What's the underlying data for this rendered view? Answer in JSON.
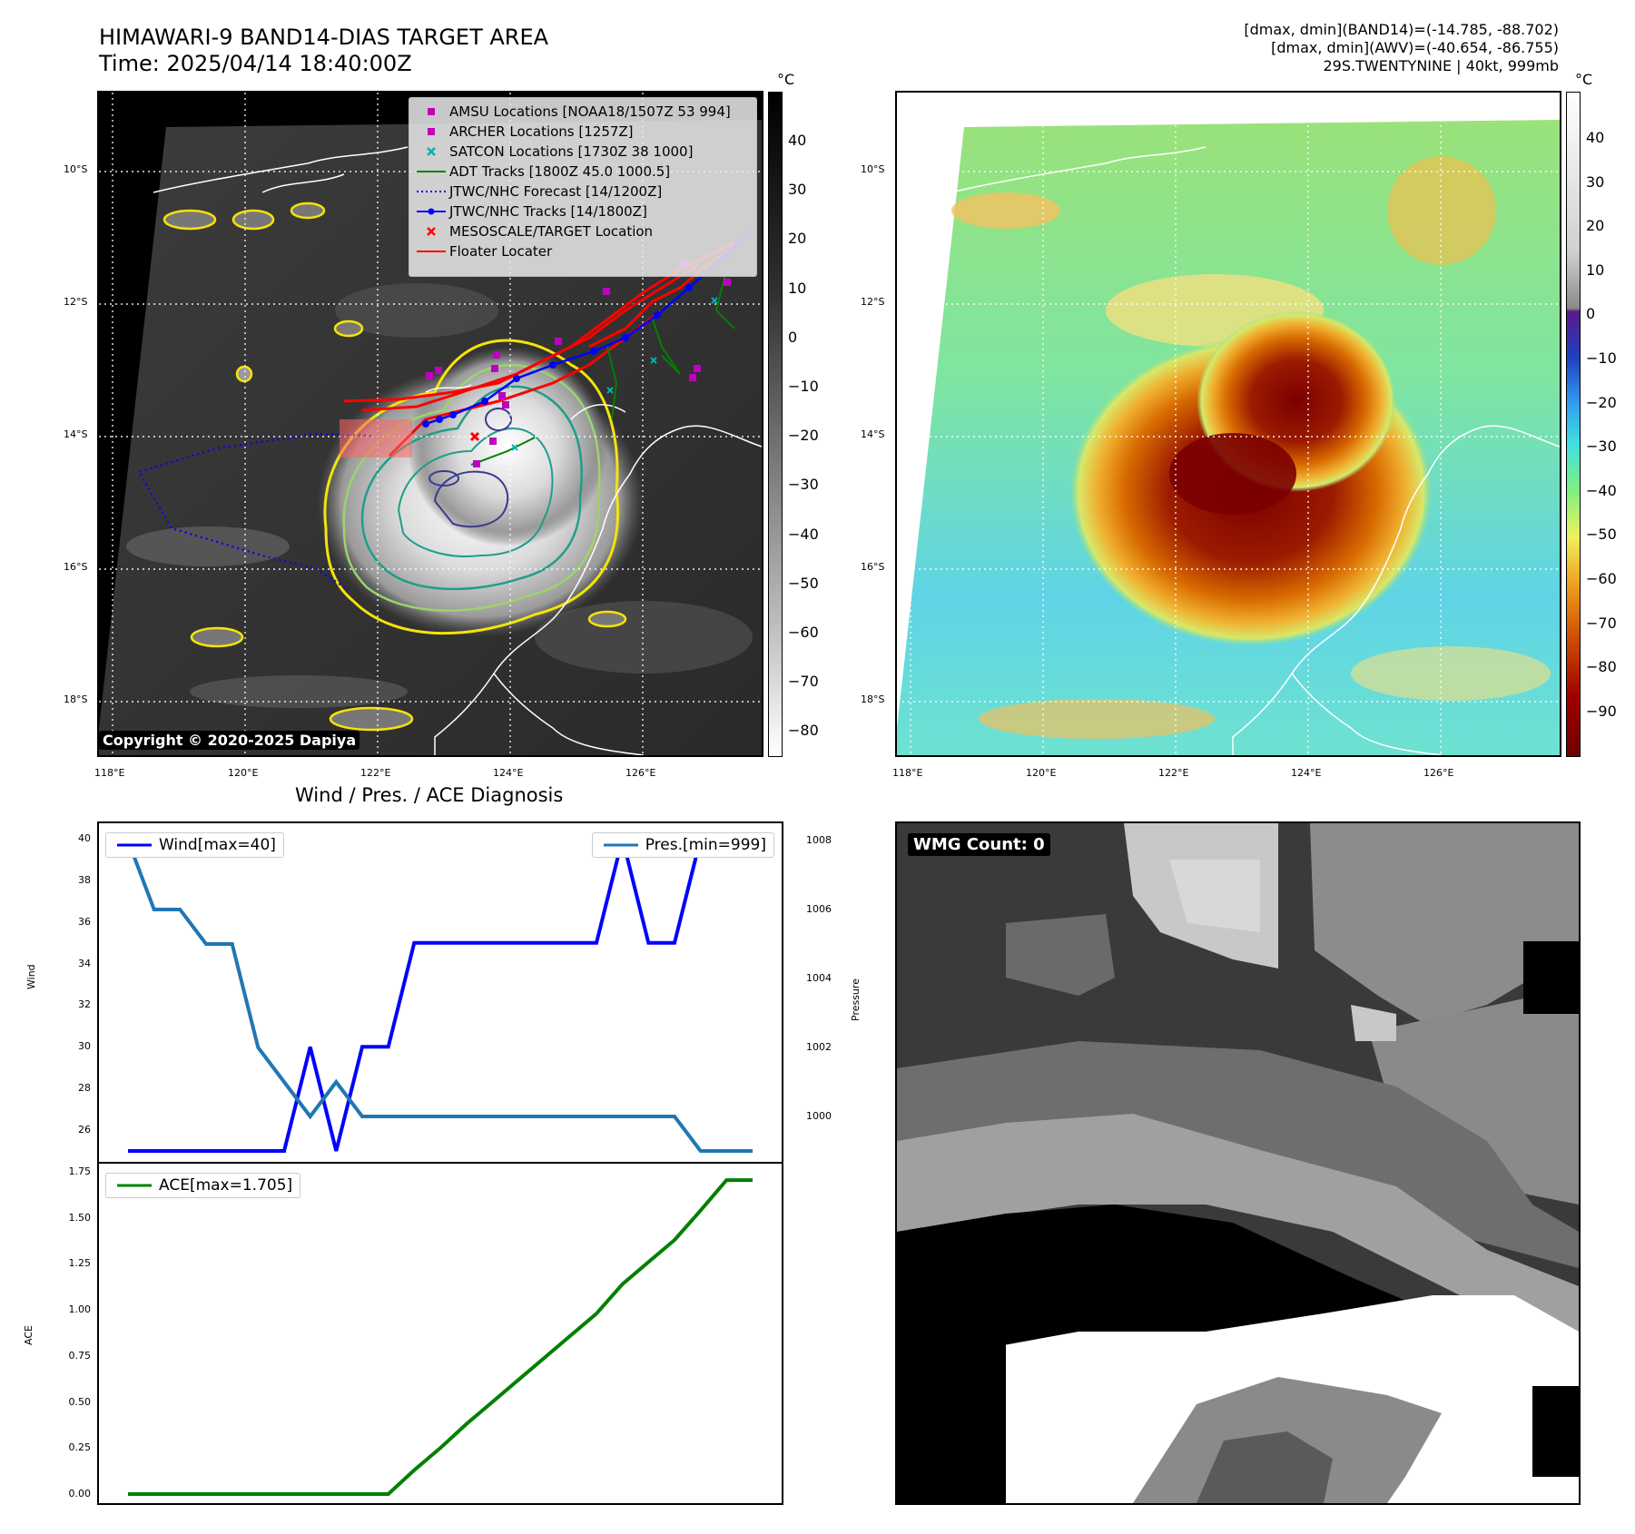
{
  "header": {
    "title_line1": "HIMAWARI-9 BAND14-DIAS TARGET AREA",
    "title_line2": "Time: 2025/04/14 18:40:00Z",
    "info_line1": "[dmax, dmin](BAND14)=(-14.785, -88.702)",
    "info_line2": "[dmax, dmin](AWV)=(-40.654, -86.755)",
    "info_line3": "29S.TWENTYNINE | 40kt, 999mb"
  },
  "map": {
    "lat_labels": [
      "10°S",
      "12°S",
      "14°S",
      "16°S",
      "18°S"
    ],
    "lon_labels": [
      "118°E",
      "120°E",
      "122°E",
      "124°E",
      "126°E"
    ],
    "copyright": "Copyright © 2020-2025 Dapiya",
    "legend": [
      {
        "label": "AMSU Locations [NOAA18/1507Z 53 994]",
        "symbol": "square",
        "color": "#c000c0"
      },
      {
        "label": "ARCHER Locations [1257Z]",
        "symbol": "square",
        "color": "#c000c0"
      },
      {
        "label": "SATCON Locations [1730Z 38 1000]",
        "symbol": "x",
        "color": "#00b0b0"
      },
      {
        "label": "ADT Tracks [1800Z 45.0 1000.5]",
        "symbol": "line",
        "color": "#008000"
      },
      {
        "label": "JTWC/NHC Forecast [14/1200Z]",
        "symbol": "dotted",
        "color": "#0000ff"
      },
      {
        "label": "JTWC/NHC Tracks [14/1800Z]",
        "symbol": "line-dot",
        "color": "#0000ff"
      },
      {
        "label": "MESOSCALE/TARGET Location",
        "symbol": "x",
        "color": "#ff0000"
      },
      {
        "label": "Floater Locater",
        "symbol": "line",
        "color": "#ff0000"
      }
    ]
  },
  "colorbar_left": {
    "unit": "°C",
    "ticks": [
      "40",
      "30",
      "20",
      "10",
      "0",
      "−10",
      "−20",
      "−30",
      "−40",
      "−50",
      "−60",
      "−70",
      "−80"
    ]
  },
  "colorbar_right": {
    "unit": "°C",
    "ticks": [
      "40",
      "30",
      "20",
      "10",
      "0",
      "−10",
      "−20",
      "−30",
      "−40",
      "−50",
      "−60",
      "−70",
      "−80",
      "−90"
    ]
  },
  "diagnosis": {
    "title": "Wind / Pres. / ACE Diagnosis",
    "wind_ylabel": "Wind",
    "pres_ylabel": "Pressure",
    "ace_ylabel": "ACE",
    "legend_wind": "Wind[max=40]",
    "legend_pres": "Pres.[min=999]",
    "legend_ace": "ACE[max=1.705]",
    "wind_ticks": [
      "40",
      "38",
      "36",
      "34",
      "32",
      "30",
      "28",
      "26"
    ],
    "pres_ticks": [
      "1008",
      "1006",
      "1004",
      "1002",
      "1000"
    ],
    "ace_ticks": [
      "1.75",
      "1.50",
      "1.25",
      "1.00",
      "0.75",
      "0.50",
      "0.25",
      "0.00"
    ]
  },
  "wmg": {
    "badge": "WMG Count: 0"
  },
  "chart_data": [
    {
      "type": "line",
      "title": "Wind / Pres. / ACE Diagnosis",
      "x": [
        0,
        1,
        2,
        3,
        4,
        5,
        6,
        7,
        8,
        9,
        10,
        11,
        12,
        13,
        14,
        15,
        16,
        17,
        18,
        19,
        20,
        21,
        22,
        23,
        24
      ],
      "series": [
        {
          "name": "Wind[max=40]",
          "axis": "Wind",
          "color": "#0000ff",
          "values": [
            25,
            25,
            25,
            25,
            25,
            25,
            25,
            30,
            25,
            30,
            30,
            35,
            35,
            35,
            35,
            35,
            35,
            35,
            35,
            40,
            35,
            35,
            40,
            40,
            40
          ]
        },
        {
          "name": "Pres.[min=999]",
          "axis": "Pressure",
          "color": "#1f77b4",
          "values": [
            1008,
            1006,
            1006,
            1005,
            1005,
            1002,
            1001,
            1000,
            1001,
            1000,
            1000,
            1000,
            1000,
            1000,
            1000,
            1000,
            1000,
            1000,
            1000,
            1000,
            1000,
            1000,
            999,
            999,
            999
          ]
        }
      ],
      "ylim_wind": [
        25,
        40
      ],
      "ylim_pres": [
        999,
        1008
      ]
    },
    {
      "type": "line",
      "x": [
        0,
        1,
        2,
        3,
        4,
        5,
        6,
        7,
        8,
        9,
        10,
        11,
        12,
        13,
        14,
        15,
        16,
        17,
        18,
        19,
        20,
        21,
        22,
        23,
        24
      ],
      "series": [
        {
          "name": "ACE[max=1.705]",
          "axis": "ACE",
          "color": "#008000",
          "values": [
            0,
            0,
            0,
            0,
            0,
            0,
            0,
            0,
            0,
            0,
            0,
            0.13,
            0.25,
            0.38,
            0.5,
            0.62,
            0.74,
            0.86,
            0.98,
            1.14,
            1.26,
            1.38,
            1.54,
            1.705,
            1.705
          ]
        }
      ],
      "ylim": [
        0,
        1.75
      ]
    }
  ],
  "colors": {
    "wind": "#0000ff",
    "pres": "#1f77b4",
    "ace": "#008000",
    "contour_yellow": "#f5e30a",
    "contour_teal": "#1f9e89",
    "contour_lightgreen": "#9ad56a",
    "contour_navy": "#3b3b8f"
  }
}
